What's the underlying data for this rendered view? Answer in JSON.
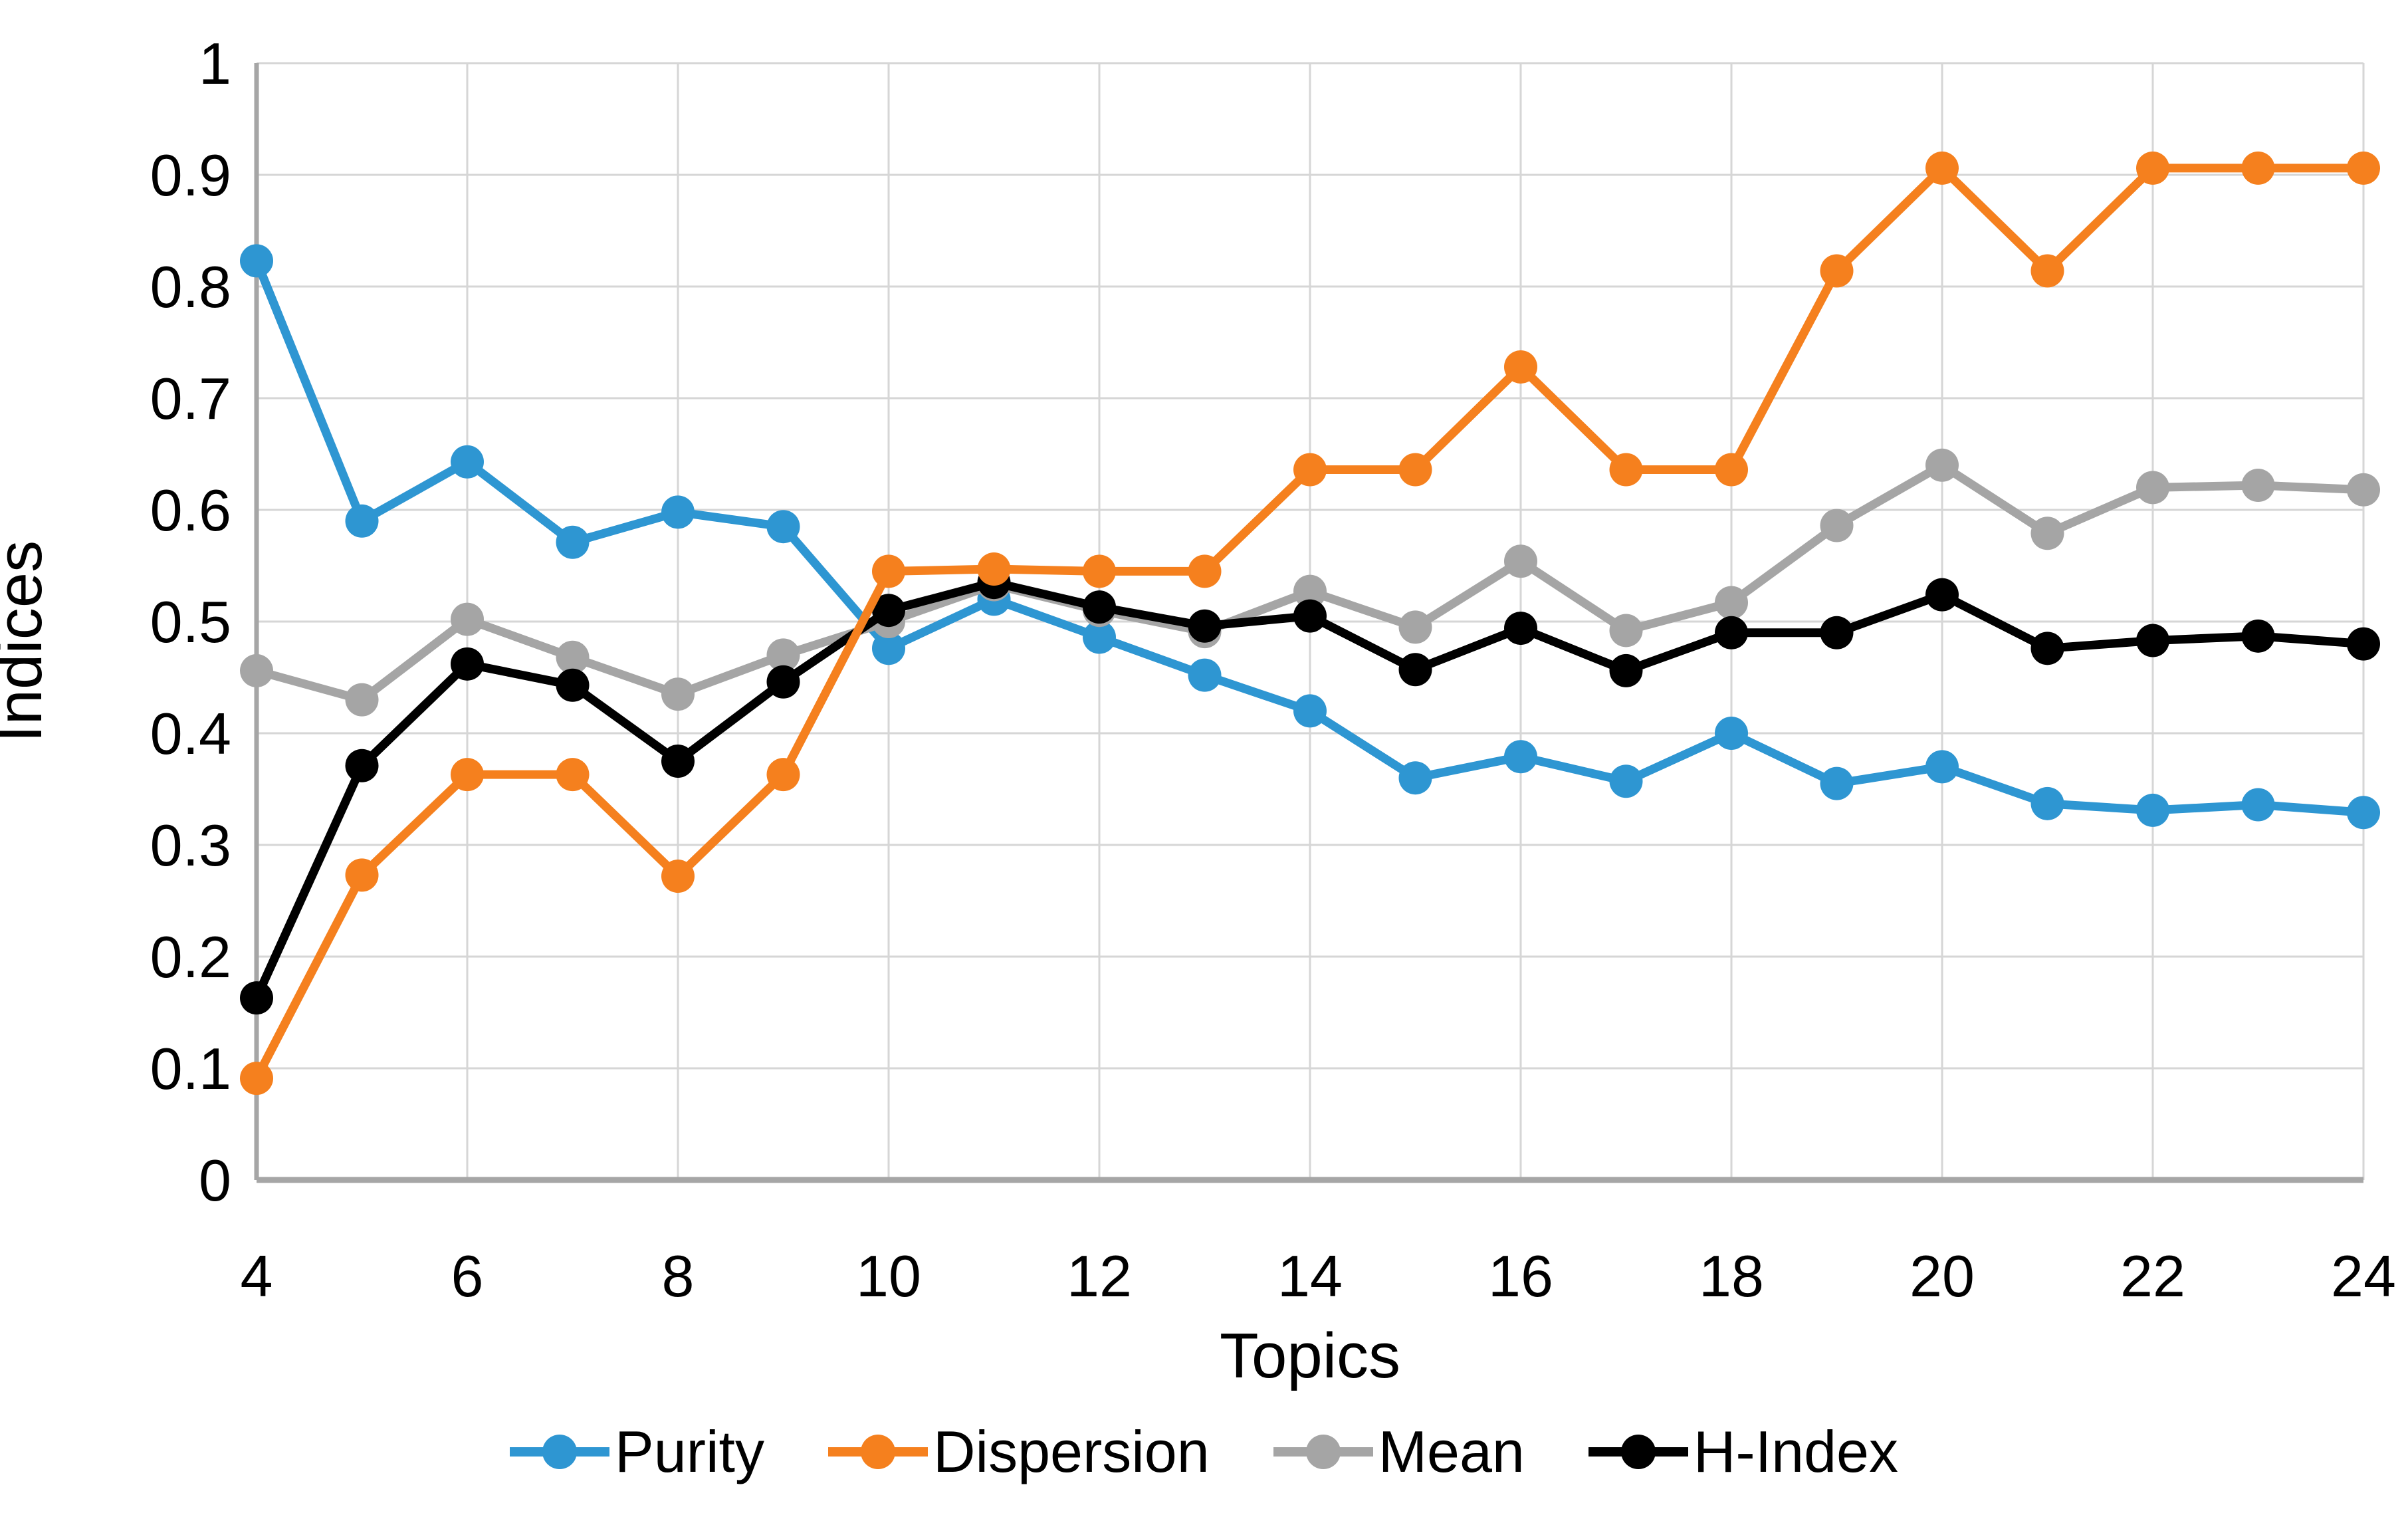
{
  "figure": {
    "background": "#FFFFFF"
  },
  "chart_data": {
    "type": "line",
    "title": "",
    "xlabel": "Topics",
    "ylabel": "Indices",
    "xlim": [
      4,
      24
    ],
    "ylim": [
      0,
      1
    ],
    "grid": true,
    "legend_position": "bottom",
    "x": [
      4,
      5,
      6,
      7,
      8,
      9,
      10,
      11,
      12,
      13,
      14,
      15,
      16,
      17,
      18,
      19,
      20,
      21,
      22,
      23,
      24
    ],
    "x_ticks": [
      4,
      6,
      8,
      10,
      12,
      14,
      16,
      18,
      20,
      22,
      24
    ],
    "x_tick_labels": [
      "4",
      "6",
      "8",
      "10",
      "12",
      "14",
      "16",
      "18",
      "20",
      "22",
      "24"
    ],
    "y_ticks": [
      0,
      0.1,
      0.2,
      0.3,
      0.4,
      0.5,
      0.6,
      0.7,
      0.8,
      0.9,
      1
    ],
    "y_tick_labels": [
      "0",
      "0.1",
      "0.2",
      "0.3",
      "0.4",
      "0.5",
      "0.6",
      "0.7",
      "0.8",
      "0.9",
      "1"
    ],
    "colors": {
      "grid_line": "#D6D6D6",
      "axis_line": "#A6A6A6",
      "text": "#000000"
    },
    "series": [
      {
        "name": "Purity",
        "color": "#2E96D2",
        "values": [
          0.823,
          0.59,
          0.643,
          0.571,
          0.598,
          0.585,
          0.476,
          0.52,
          0.486,
          0.452,
          0.42,
          0.36,
          0.379,
          0.357,
          0.4,
          0.355,
          0.37,
          0.337,
          0.331,
          0.336,
          0.329
        ]
      },
      {
        "name": "Dispersion",
        "color": "#F5801E",
        "values": [
          0.091,
          0.273,
          0.363,
          0.363,
          0.272,
          0.363,
          0.545,
          0.547,
          0.545,
          0.545,
          0.636,
          0.636,
          0.728,
          0.636,
          0.636,
          0.814,
          0.906,
          0.814,
          0.906,
          0.906,
          0.906
        ]
      },
      {
        "name": "Mean",
        "color": "#A5A5A5",
        "values": [
          0.456,
          0.43,
          0.502,
          0.468,
          0.435,
          0.47,
          0.5,
          0.533,
          0.51,
          0.491,
          0.527,
          0.495,
          0.554,
          0.492,
          0.517,
          0.586,
          0.64,
          0.579,
          0.62,
          0.622,
          0.618
        ]
      },
      {
        "name": "H-Index",
        "color": "#000000",
        "values": [
          0.163,
          0.371,
          0.462,
          0.443,
          0.375,
          0.446,
          0.51,
          0.535,
          0.513,
          0.496,
          0.505,
          0.457,
          0.494,
          0.456,
          0.49,
          0.49,
          0.524,
          0.476,
          0.483,
          0.487,
          0.48
        ]
      }
    ]
  }
}
